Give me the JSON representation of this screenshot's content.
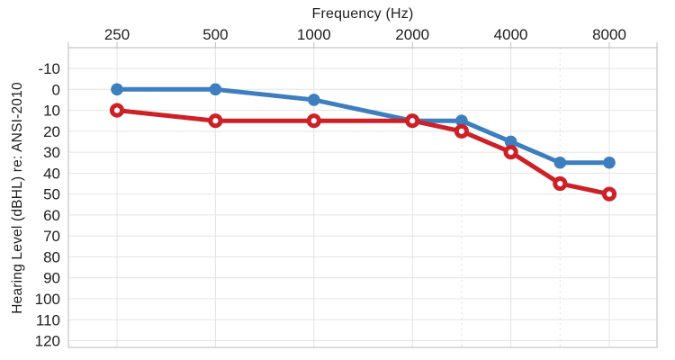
{
  "chart_data": {
    "type": "line",
    "title": "Frequency (Hz)",
    "ylabel": "Hearing Level (dBHL) re: ANSI-2010",
    "x_categories": [
      250,
      500,
      1000,
      2000,
      3000,
      4000,
      6000,
      8000
    ],
    "x_tick_labels": [
      "250",
      "500",
      "1000",
      "2000",
      "4000",
      "8000"
    ],
    "x_major_index": [
      0,
      1,
      2,
      3,
      4,
      5
    ],
    "x_index": [
      0,
      1,
      2,
      3,
      3.5,
      4,
      4.5,
      5
    ],
    "minor_dashed_x": [
      3000,
      6000
    ],
    "y_ticks": [
      -10,
      0,
      10,
      20,
      30,
      40,
      50,
      60,
      70,
      80,
      90,
      100,
      110,
      120
    ],
    "ylim": [
      -20,
      123
    ],
    "y_axis_direction": "increasing-downward",
    "grid": "on",
    "legend": "none",
    "series": [
      {
        "name": "blue-filled-circles",
        "marker": "filled-circle",
        "color": "#3d7ebf",
        "values": [
          0,
          0,
          5,
          15,
          15,
          25,
          35,
          35
        ]
      },
      {
        "name": "red-open-circles",
        "marker": "open-circle",
        "color": "#cd2027",
        "values": [
          10,
          15,
          15,
          15,
          20,
          30,
          45,
          50
        ]
      }
    ],
    "colors": {
      "grid_major": "#e4e4e4",
      "grid_minor_dashed": "#dedede",
      "plot_border": "#c8c8c8",
      "text": "#1e1e1e",
      "background": "#ffffff"
    }
  }
}
